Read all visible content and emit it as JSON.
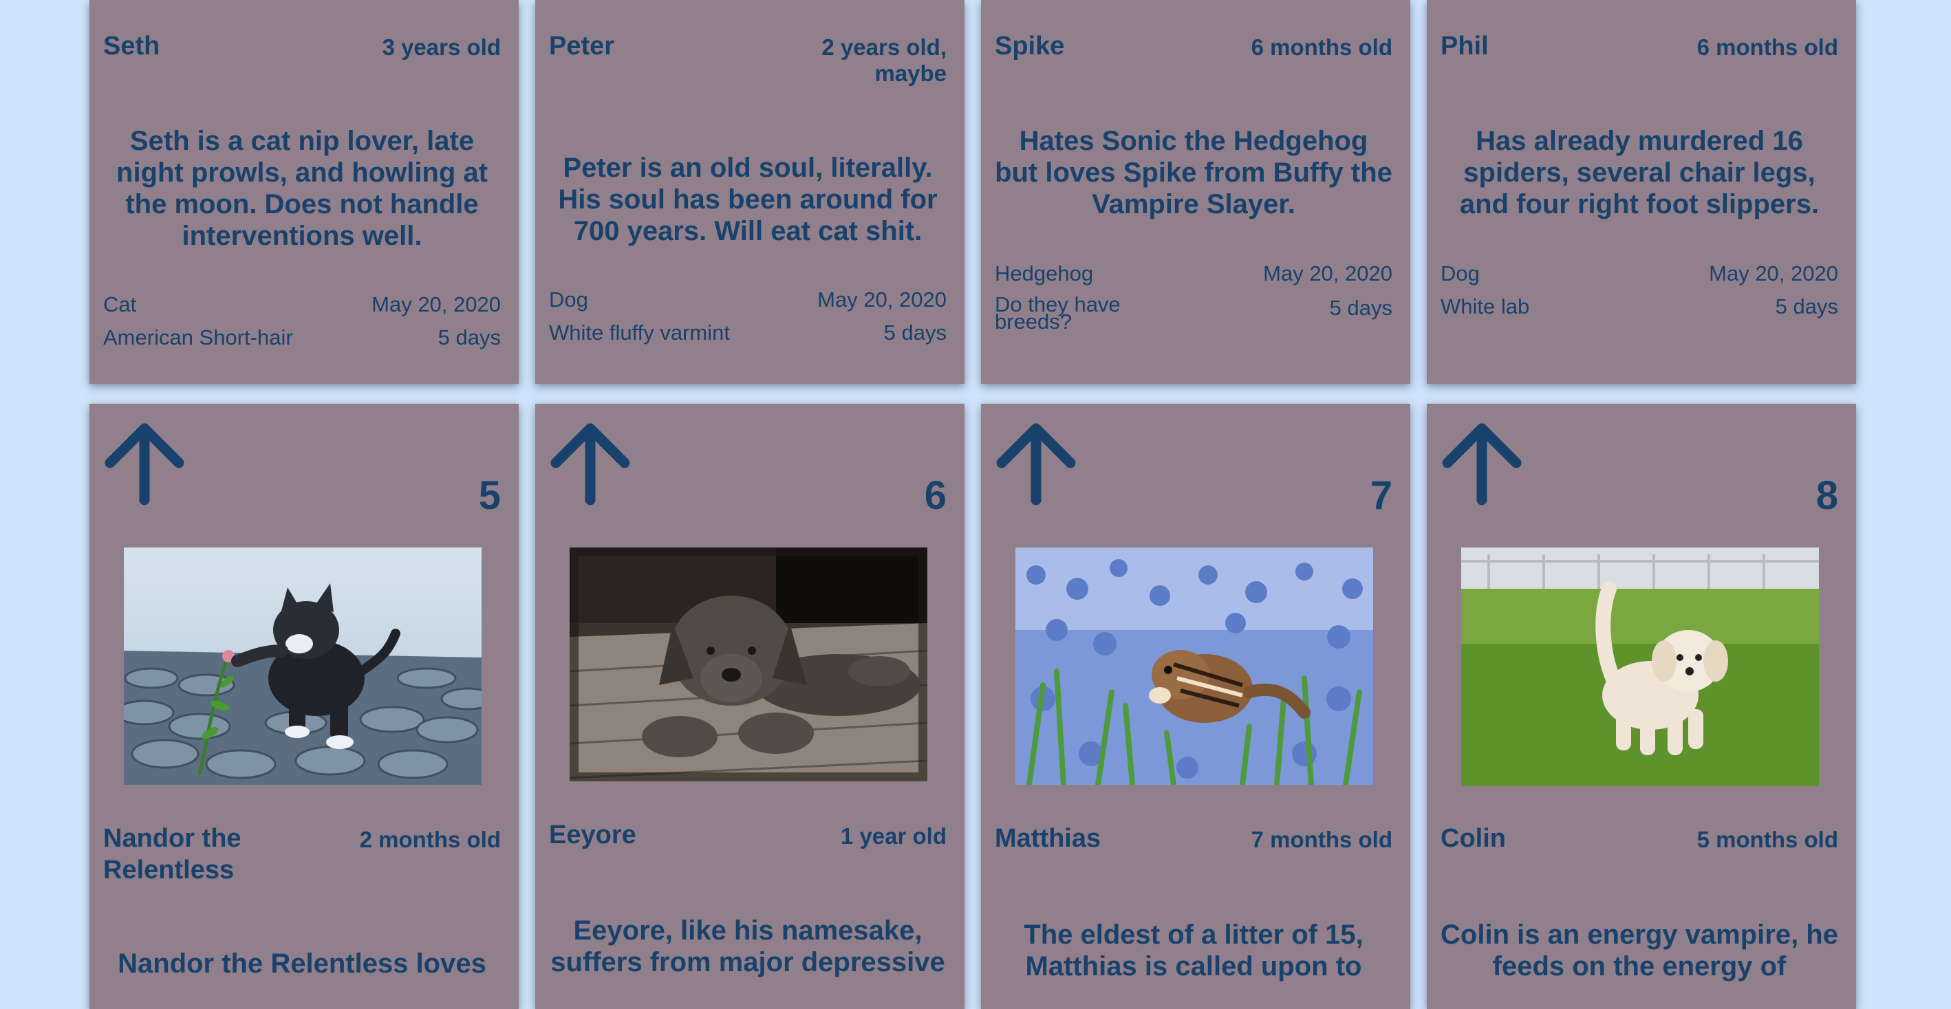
{
  "row1": [
    {
      "name": "Seth",
      "age": "3 years old",
      "description": "Seth is a cat nip lover, late night prowls, and howling at the moon. Does not handle interventions well.",
      "species": "Cat",
      "breed": "American Short-hair",
      "date": "May 20, 2020",
      "duration": "5 days"
    },
    {
      "name": "Peter",
      "age": "2 years old, maybe",
      "description": "Peter is an old soul, literally. His soul has been around for 700 years. Will eat cat shit.",
      "species": "Dog",
      "breed": "White fluffy varmint",
      "date": "May 20, 2020",
      "duration": "5 days"
    },
    {
      "name": "Spike",
      "age": "6 months old",
      "description": "Hates Sonic the Hedgehog but loves Spike from Buffy the Vampire Slayer.",
      "species": "Hedgehog",
      "breed": "Do they have breeds?",
      "date": "May 20, 2020",
      "duration": "5 days"
    },
    {
      "name": "Phil",
      "age": "6 months old",
      "description": "Has already murdered 16 spiders, several chair legs, and four right foot slippers.",
      "species": "Dog",
      "breed": "White lab",
      "date": "May 20, 2020",
      "duration": "5 days"
    }
  ],
  "row2": [
    {
      "votes": "5",
      "photo": "kitten-playing-with-plant",
      "name": "Nandor the Relentless",
      "age": "2 months old",
      "description": "Nandor the Relentless loves"
    },
    {
      "votes": "6",
      "photo": "puppy-lying-on-deck",
      "name": "Eeyore",
      "age": "1 year old",
      "description": "Eeyore, like his namesake, suffers from major depressive"
    },
    {
      "votes": "7",
      "photo": "chipmunk-in-flowers",
      "name": "Matthias",
      "age": "7 months old",
      "description": "The eldest of a litter of 15, Matthias is called upon to"
    },
    {
      "votes": "8",
      "photo": "puppy-on-grass",
      "name": "Colin",
      "age": "5 months old",
      "description": "Colin is an energy vampire, he feeds on the energy of"
    }
  ],
  "colors": {
    "background": "#cde4fb",
    "card": "#91808b",
    "text": "#18426b"
  }
}
